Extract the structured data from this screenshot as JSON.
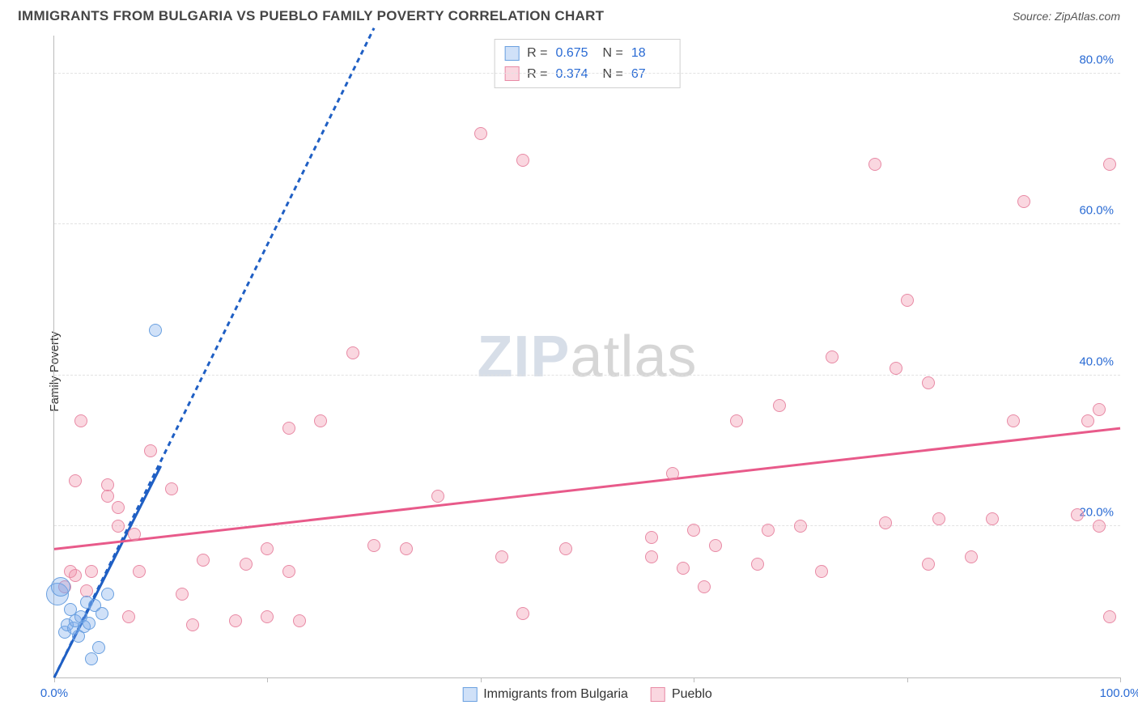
{
  "header": {
    "title": "IMMIGRANTS FROM BULGARIA VS PUEBLO FAMILY POVERTY CORRELATION CHART",
    "source_label": "Source: ZipAtlas.com"
  },
  "chart": {
    "type": "scatter",
    "ylabel": "Family Poverty",
    "xlim": [
      0,
      100
    ],
    "ylim": [
      0,
      85
    ],
    "x_ticks": [
      0,
      20,
      40,
      60,
      80,
      100
    ],
    "x_tick_labels_shown": {
      "0": "0.0%",
      "100": "100.0%"
    },
    "y_gridlines": [
      20,
      40,
      60,
      80
    ],
    "y_tick_labels": {
      "20": "20.0%",
      "40": "40.0%",
      "60": "60.0%",
      "80": "80.0%"
    },
    "axis_label_color": "#2a6bd4",
    "grid_color": "#e2e2e2",
    "background_color": "#ffffff",
    "point_radius": 8,
    "series": {
      "bulgaria": {
        "label": "Immigrants from Bulgaria",
        "fill": "rgba(120,170,235,0.35)",
        "stroke": "#6aa0e0",
        "R": "0.675",
        "N": "18",
        "trend": {
          "color": "#1f5fc4",
          "width": 3,
          "dash_extend": true,
          "x1": 0,
          "y1": 0,
          "x2": 10,
          "y2": 28,
          "dash_x2": 30,
          "dash_y2": 86
        },
        "points": [
          {
            "x": 0.3,
            "y": 11,
            "r": 14
          },
          {
            "x": 0.6,
            "y": 12,
            "r": 12
          },
          {
            "x": 1.0,
            "y": 6
          },
          {
            "x": 1.2,
            "y": 7
          },
          {
            "x": 1.5,
            "y": 9
          },
          {
            "x": 1.8,
            "y": 6.5
          },
          {
            "x": 2.0,
            "y": 7.5
          },
          {
            "x": 2.3,
            "y": 5.5
          },
          {
            "x": 2.5,
            "y": 8
          },
          {
            "x": 2.8,
            "y": 6.8
          },
          {
            "x": 3.0,
            "y": 10
          },
          {
            "x": 3.3,
            "y": 7.2
          },
          {
            "x": 3.8,
            "y": 9.5
          },
          {
            "x": 4.2,
            "y": 4
          },
          {
            "x": 4.5,
            "y": 8.5
          },
          {
            "x": 5.0,
            "y": 11
          },
          {
            "x": 3.5,
            "y": 2.5
          },
          {
            "x": 9.5,
            "y": 46
          }
        ]
      },
      "pueblo": {
        "label": "Pueblo",
        "fill": "rgba(240,140,165,0.35)",
        "stroke": "#e88aa5",
        "R": "0.374",
        "N": "67",
        "trend": {
          "color": "#e85a8a",
          "width": 3,
          "x1": 0,
          "y1": 17,
          "x2": 100,
          "y2": 33
        },
        "points": [
          {
            "x": 1,
            "y": 12
          },
          {
            "x": 1.5,
            "y": 14
          },
          {
            "x": 2,
            "y": 13.5
          },
          {
            "x": 2,
            "y": 26
          },
          {
            "x": 2.5,
            "y": 34
          },
          {
            "x": 3,
            "y": 11.5
          },
          {
            "x": 3.5,
            "y": 14
          },
          {
            "x": 5,
            "y": 24
          },
          {
            "x": 5,
            "y": 25.5
          },
          {
            "x": 6,
            "y": 20
          },
          {
            "x": 6,
            "y": 22.5
          },
          {
            "x": 7,
            "y": 8
          },
          {
            "x": 7.5,
            "y": 19
          },
          {
            "x": 8,
            "y": 14
          },
          {
            "x": 9,
            "y": 30
          },
          {
            "x": 11,
            "y": 25
          },
          {
            "x": 12,
            "y": 11
          },
          {
            "x": 13,
            "y": 7
          },
          {
            "x": 14,
            "y": 15.5
          },
          {
            "x": 17,
            "y": 7.5
          },
          {
            "x": 18,
            "y": 15
          },
          {
            "x": 20,
            "y": 17
          },
          {
            "x": 20,
            "y": 8
          },
          {
            "x": 22,
            "y": 14
          },
          {
            "x": 23,
            "y": 7.5
          },
          {
            "x": 22,
            "y": 33
          },
          {
            "x": 25,
            "y": 34
          },
          {
            "x": 28,
            "y": 43
          },
          {
            "x": 30,
            "y": 17.5
          },
          {
            "x": 33,
            "y": 17
          },
          {
            "x": 36,
            "y": 24
          },
          {
            "x": 40,
            "y": 72
          },
          {
            "x": 42,
            "y": 16
          },
          {
            "x": 44,
            "y": 8.5
          },
          {
            "x": 44,
            "y": 68.5
          },
          {
            "x": 48,
            "y": 17
          },
          {
            "x": 56,
            "y": 16
          },
          {
            "x": 56,
            "y": 18.5
          },
          {
            "x": 58,
            "y": 27
          },
          {
            "x": 59,
            "y": 14.5
          },
          {
            "x": 60,
            "y": 19.5
          },
          {
            "x": 61,
            "y": 12
          },
          {
            "x": 62,
            "y": 17.5
          },
          {
            "x": 64,
            "y": 34
          },
          {
            "x": 66,
            "y": 15
          },
          {
            "x": 67,
            "y": 19.5
          },
          {
            "x": 68,
            "y": 36
          },
          {
            "x": 70,
            "y": 20
          },
          {
            "x": 72,
            "y": 14
          },
          {
            "x": 73,
            "y": 42.5
          },
          {
            "x": 77,
            "y": 68
          },
          {
            "x": 78,
            "y": 20.5
          },
          {
            "x": 79,
            "y": 41
          },
          {
            "x": 80,
            "y": 50
          },
          {
            "x": 82,
            "y": 15
          },
          {
            "x": 82,
            "y": 39
          },
          {
            "x": 83,
            "y": 21
          },
          {
            "x": 86,
            "y": 16
          },
          {
            "x": 88,
            "y": 21
          },
          {
            "x": 90,
            "y": 34
          },
          {
            "x": 91,
            "y": 63
          },
          {
            "x": 96,
            "y": 21.5
          },
          {
            "x": 97,
            "y": 34
          },
          {
            "x": 98,
            "y": 20
          },
          {
            "x": 98,
            "y": 35.5
          },
          {
            "x": 99,
            "y": 68
          },
          {
            "x": 99,
            "y": 8
          }
        ]
      }
    },
    "watermark": {
      "zip": "ZIP",
      "atlas": "atlas"
    }
  }
}
